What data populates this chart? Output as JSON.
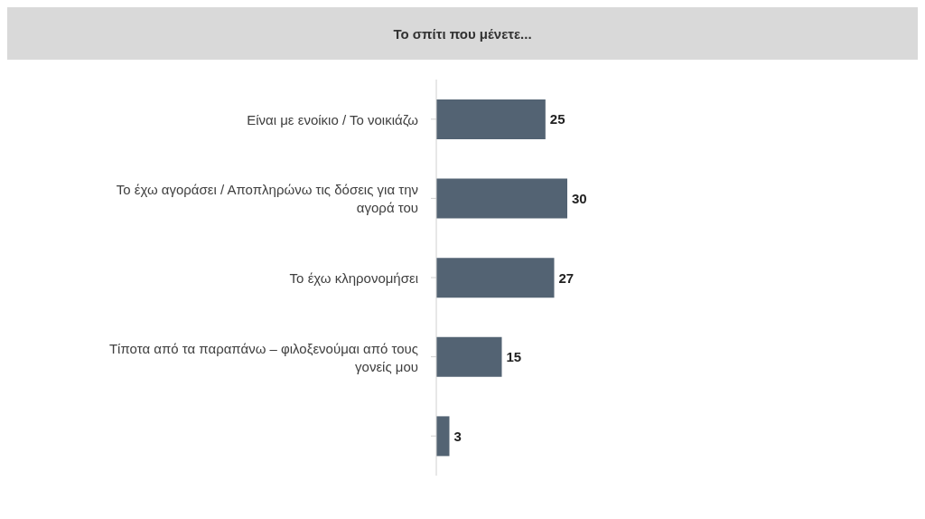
{
  "chart_data": {
    "type": "bar",
    "orientation": "horizontal",
    "title": "Το σπίτι που μένετε...",
    "categories": [
      "Είναι με ενοίκιο / Το νοικιάζω",
      "Το έχω αγοράσει / Αποπληρώνω τις δόσεις για την αγορά του",
      "Το έχω κληρονομήσει",
      "Τίποτα από τα παραπάνω – φιλοξενούμαι από τους γονείς μου",
      null
    ],
    "values": [
      25,
      30,
      27,
      15,
      3
    ],
    "color": "#536373",
    "data_labels": true
  }
}
